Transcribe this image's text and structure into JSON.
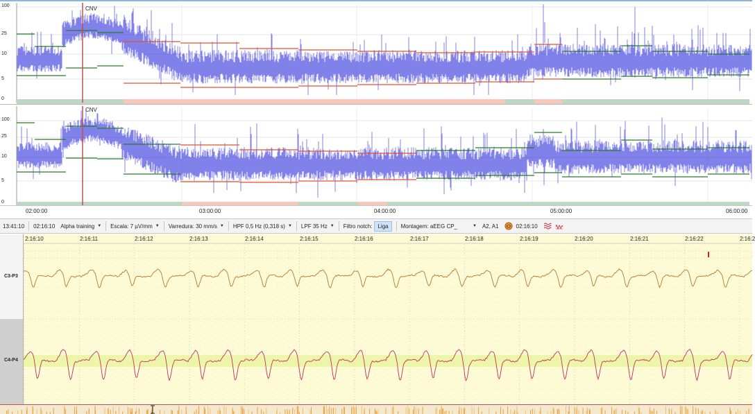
{
  "aeeg": {
    "marker_label": "CNV",
    "y_ticks": [
      "100",
      "25",
      "10",
      "5",
      "0"
    ],
    "time_ticks": [
      "02:00:00",
      "03:00:00",
      "04:00:00",
      "05:00:00",
      "06:00:00"
    ],
    "marker_color": "#c0504d",
    "trace_color": "#2b2bdc",
    "upper_margin_color": "#e8502c",
    "lower_margin_color": "#2a7a2a",
    "status_colors": {
      "normal": "#bcd8c2",
      "abnormal": "#f4c9bb"
    }
  },
  "toolbar": {
    "clock": "13:41:10",
    "cursor_time": "02:16:10",
    "mode": "Alpha training",
    "scale_label": "Escala:",
    "scale_value": "7 µV/mm",
    "sweep_label": "Varredura:",
    "sweep_value": "30 mm/s",
    "hpf_label": "HPF",
    "hpf_value": "0,5 Hz (0,318 s)",
    "lpf_label": "LPF",
    "lpf_value": "35 Hz",
    "notch_label": "Filtro notch:",
    "notch_button": "Liga",
    "montage_label": "Montagem:",
    "montage_value": "aEEG CP_",
    "reference_value": "A2, A1",
    "event_time": "02:16:10",
    "icons": [
      "brain-icon",
      "channels-icon",
      "waveform-icon"
    ]
  },
  "eeg": {
    "second_ticks": [
      "2:16:10",
      "2:16:11",
      "2:16:12",
      "2:16:13",
      "2:16:14",
      "2:16:15",
      "2:16:16",
      "2:16:17",
      "2:16:18",
      "2:16:19",
      "2:16:20",
      "2:16:21",
      "2:16:22",
      "2:16:2"
    ],
    "channels": [
      {
        "name": "C3-P3",
        "color": "#b5762a"
      },
      {
        "name": "C4-P4",
        "color": "#c0305a"
      }
    ],
    "zoom_in": "+",
    "zoom_out": "−",
    "background_color": "#fdfbd6",
    "highlight_color": "#e8f59c"
  }
}
